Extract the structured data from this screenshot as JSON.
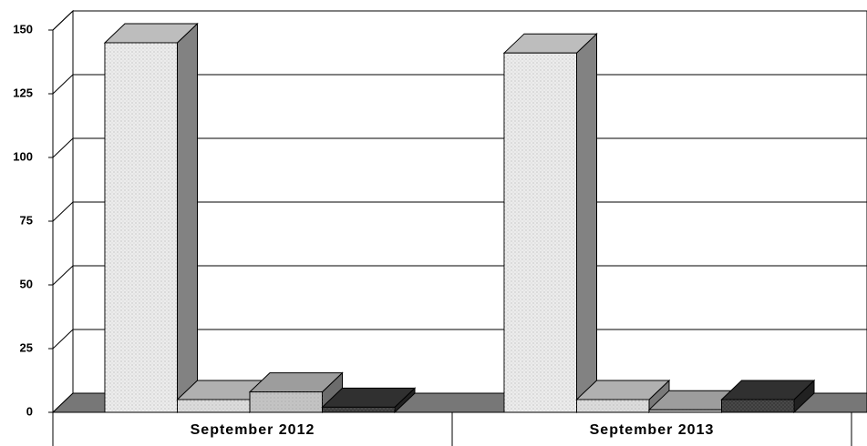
{
  "chart_data": {
    "type": "bar3d",
    "categories": [
      "September 2012",
      "September 2013"
    ],
    "series": [
      {
        "color": "#ececec",
        "values": [
          145,
          141
        ]
      },
      {
        "color": "#dcdcdc",
        "values": [
          5,
          5
        ]
      },
      {
        "color": "#c4c4c4",
        "values": [
          8,
          1
        ]
      },
      {
        "color": "#3c3c3c",
        "values": [
          2,
          5
        ]
      }
    ],
    "ylim": [
      0,
      150
    ],
    "yticks": [
      0,
      25,
      50,
      75,
      100,
      125,
      150
    ],
    "grid": true
  }
}
